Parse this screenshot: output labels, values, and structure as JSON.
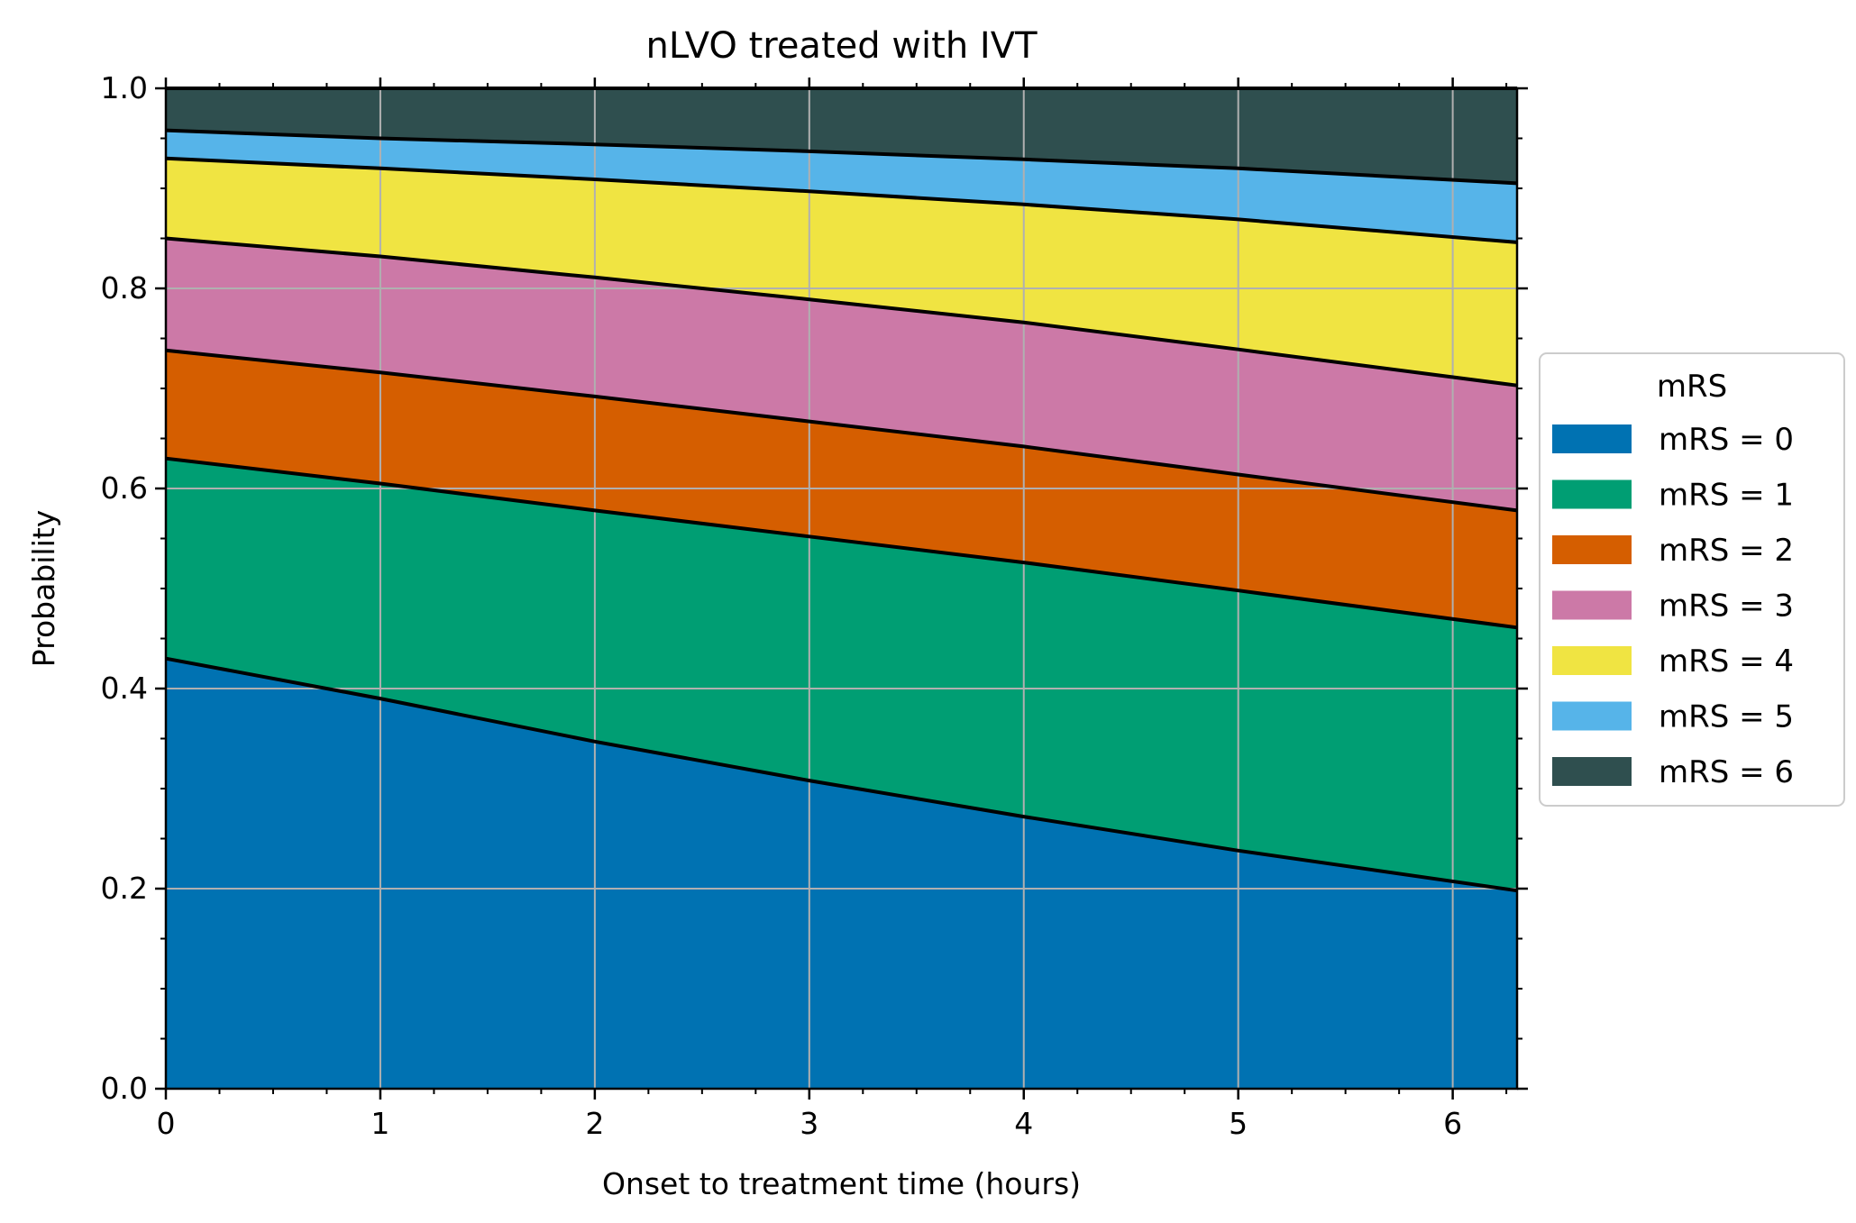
{
  "chart_data": {
    "type": "area",
    "stacked": true,
    "title": "nLVO treated with IVT",
    "xlabel": "Onset to treatment time (hours)",
    "ylabel": "Probability",
    "xlim": [
      0,
      6.3
    ],
    "ylim": [
      0,
      1.0
    ],
    "x_ticks": [
      0,
      1,
      2,
      3,
      4,
      5,
      6
    ],
    "x_tick_labels": [
      "0",
      "1",
      "2",
      "3",
      "4",
      "5",
      "6"
    ],
    "y_ticks": [
      0.0,
      0.2,
      0.4,
      0.6,
      0.8,
      1.0
    ],
    "y_tick_labels": [
      "0.0",
      "0.2",
      "0.4",
      "0.6",
      "0.8",
      "1.0"
    ],
    "grid": true,
    "legend": {
      "title": "mRS",
      "placement": "right-outside"
    },
    "x": [
      0,
      1,
      2,
      3,
      4,
      5,
      6.3
    ],
    "cumulative_boundaries": [
      {
        "upper_of": "mRS = 0",
        "values": [
          0.43,
          0.39,
          0.347,
          0.308,
          0.272,
          0.238,
          0.198
        ]
      },
      {
        "upper_of": "mRS = 1",
        "values": [
          0.63,
          0.605,
          0.578,
          0.552,
          0.526,
          0.498,
          0.461
        ]
      },
      {
        "upper_of": "mRS = 2",
        "values": [
          0.738,
          0.716,
          0.692,
          0.667,
          0.642,
          0.614,
          0.578
        ]
      },
      {
        "upper_of": "mRS = 3",
        "values": [
          0.85,
          0.832,
          0.811,
          0.789,
          0.766,
          0.739,
          0.703
        ]
      },
      {
        "upper_of": "mRS = 4",
        "values": [
          0.93,
          0.92,
          0.909,
          0.897,
          0.884,
          0.869,
          0.846
        ]
      },
      {
        "upper_of": "mRS = 5",
        "values": [
          0.958,
          0.95,
          0.944,
          0.937,
          0.929,
          0.92,
          0.905
        ]
      },
      {
        "upper_of": "mRS = 6",
        "values": [
          1.0,
          1.0,
          1.0,
          1.0,
          1.0,
          1.0,
          1.0
        ]
      }
    ],
    "series": [
      {
        "name": "mRS = 0",
        "color": "#0072B2"
      },
      {
        "name": "mRS = 1",
        "color": "#009E73"
      },
      {
        "name": "mRS = 2",
        "color": "#D55E00"
      },
      {
        "name": "mRS = 3",
        "color": "#CC79A7"
      },
      {
        "name": "mRS = 4",
        "color": "#F0E442"
      },
      {
        "name": "mRS = 5",
        "color": "#56B4E9"
      },
      {
        "name": "mRS = 6",
        "color": "#2F4F4F"
      }
    ]
  }
}
